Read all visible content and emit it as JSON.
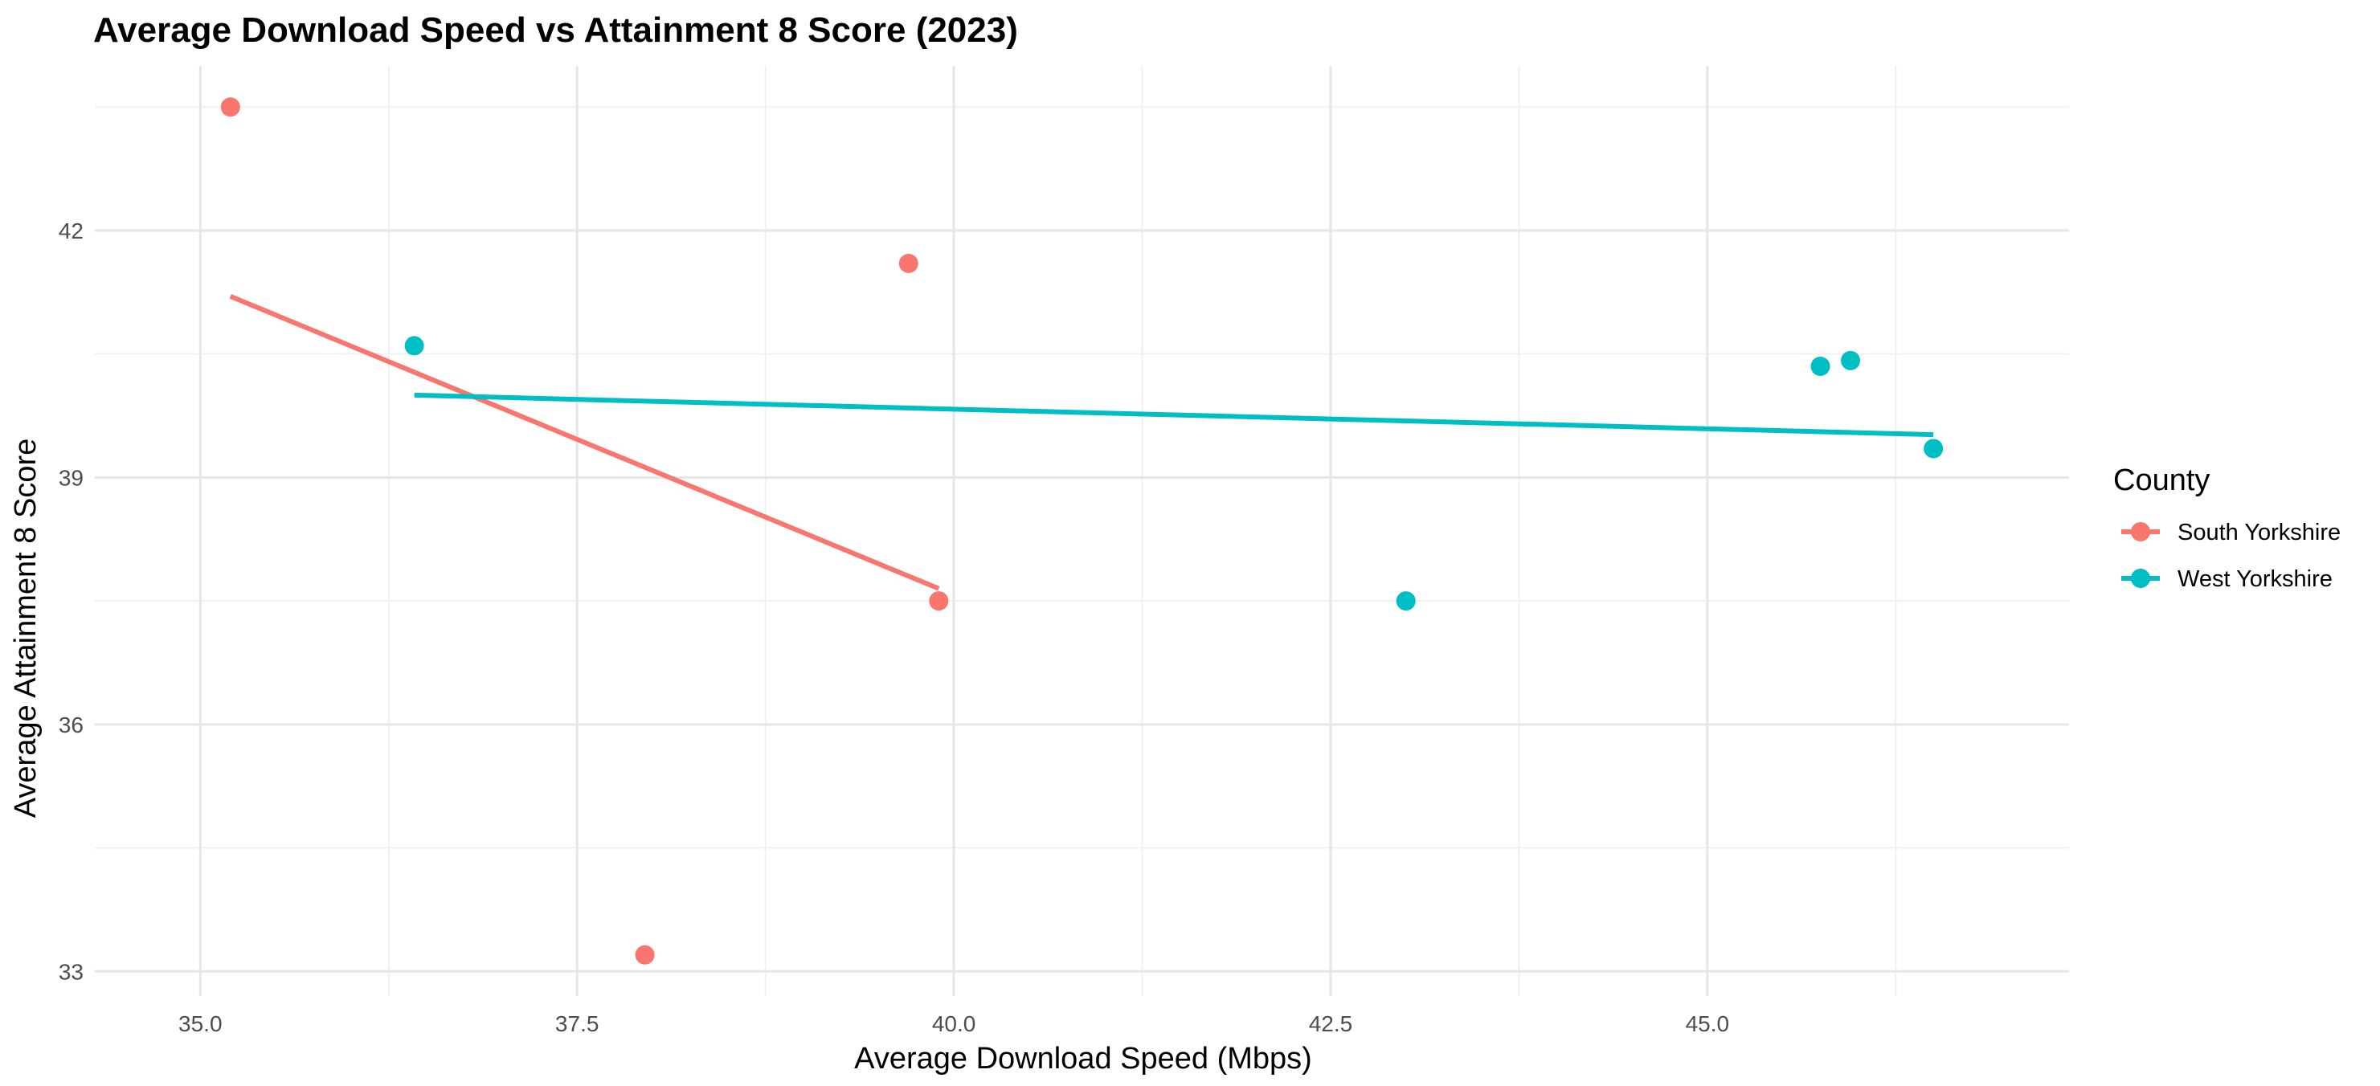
{
  "chart_data": {
    "type": "scatter",
    "title": "Average Download Speed vs Attainment 8 Score (2023)",
    "xlabel": "Average Download Speed (Mbps)",
    "ylabel": "Average Attainment 8 Score",
    "xlim": [
      34.3,
      47.4
    ],
    "ylim": [
      32.7,
      44.0
    ],
    "x_ticks": [
      35.0,
      37.5,
      40.0,
      42.5,
      45.0
    ],
    "x_tick_labels": [
      "35.0",
      "37.5",
      "40.0",
      "42.5",
      "45.0"
    ],
    "y_ticks": [
      33,
      36,
      39,
      42
    ],
    "y_tick_labels": [
      "33",
      "36",
      "39",
      "42"
    ],
    "grid": true,
    "legend": {
      "title": "County",
      "position": "right"
    },
    "series": [
      {
        "name": "South Yorkshire",
        "color": "#F8766D",
        "points": [
          {
            "x": 35.2,
            "y": 43.5
          },
          {
            "x": 39.7,
            "y": 41.6
          },
          {
            "x": 39.9,
            "y": 37.5
          },
          {
            "x": 37.95,
            "y": 33.2
          }
        ],
        "trend": {
          "x": [
            35.2,
            39.9
          ],
          "y": [
            41.2,
            37.65
          ]
        }
      },
      {
        "name": "West Yorkshire",
        "color": "#00BFC4",
        "points": [
          {
            "x": 36.42,
            "y": 40.6
          },
          {
            "x": 43.0,
            "y": 37.5
          },
          {
            "x": 45.75,
            "y": 40.35
          },
          {
            "x": 45.95,
            "y": 40.42
          },
          {
            "x": 46.5,
            "y": 39.35
          }
        ],
        "trend": {
          "x": [
            36.42,
            46.5
          ],
          "y": [
            40.0,
            39.52
          ]
        }
      }
    ]
  }
}
